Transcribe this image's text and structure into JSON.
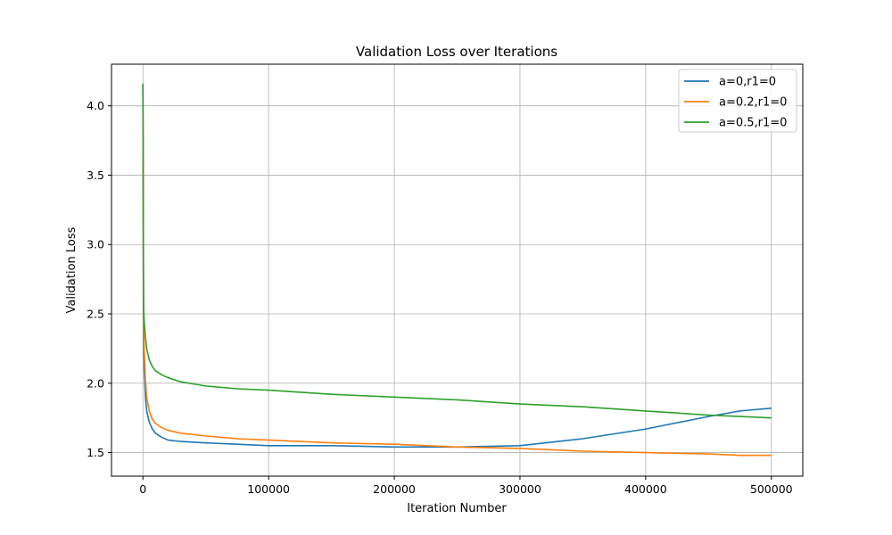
{
  "chart_data": {
    "type": "line",
    "title": "Validation Loss over Iterations",
    "xlabel": "Iteration Number",
    "ylabel": "Validation Loss",
    "xlim": [
      -25000,
      525000
    ],
    "ylim": [
      1.33,
      4.3
    ],
    "xticks": [
      0,
      100000,
      200000,
      300000,
      400000,
      500000
    ],
    "yticks": [
      1.5,
      2.0,
      2.5,
      3.0,
      3.5,
      4.0
    ],
    "xtick_labels": [
      "0",
      "100000",
      "200000",
      "300000",
      "400000",
      "500000"
    ],
    "ytick_labels": [
      "1.5",
      "2.0",
      "2.5",
      "3.0",
      "3.5",
      "4.0"
    ],
    "grid": true,
    "legend_position": "top-right",
    "x": [
      0,
      500,
      1000,
      2000,
      3000,
      5000,
      7500,
      10000,
      15000,
      20000,
      30000,
      50000,
      75000,
      100000,
      150000,
      200000,
      250000,
      300000,
      350000,
      400000,
      450000,
      475000,
      500000
    ],
    "series": [
      {
        "name": "a=0,r1=0",
        "color": "#1f77b4",
        "values": [
          4.15,
          2.35,
          2.1,
          1.9,
          1.8,
          1.72,
          1.67,
          1.64,
          1.61,
          1.59,
          1.58,
          1.57,
          1.56,
          1.55,
          1.55,
          1.54,
          1.54,
          1.55,
          1.6,
          1.67,
          1.76,
          1.8,
          1.82
        ]
      },
      {
        "name": "a=0.2,r1=0",
        "color": "#ff7f0e",
        "values": [
          4.15,
          2.45,
          2.25,
          2.02,
          1.9,
          1.8,
          1.74,
          1.71,
          1.68,
          1.66,
          1.64,
          1.62,
          1.6,
          1.59,
          1.57,
          1.56,
          1.54,
          1.53,
          1.51,
          1.5,
          1.49,
          1.48,
          1.48
        ]
      },
      {
        "name": "a=0.5,r1=0",
        "color": "#2ca02c",
        "values": [
          4.16,
          2.55,
          2.45,
          2.33,
          2.25,
          2.17,
          2.12,
          2.09,
          2.06,
          2.04,
          2.01,
          1.98,
          1.96,
          1.95,
          1.92,
          1.9,
          1.88,
          1.85,
          1.83,
          1.8,
          1.77,
          1.76,
          1.75
        ]
      }
    ]
  }
}
